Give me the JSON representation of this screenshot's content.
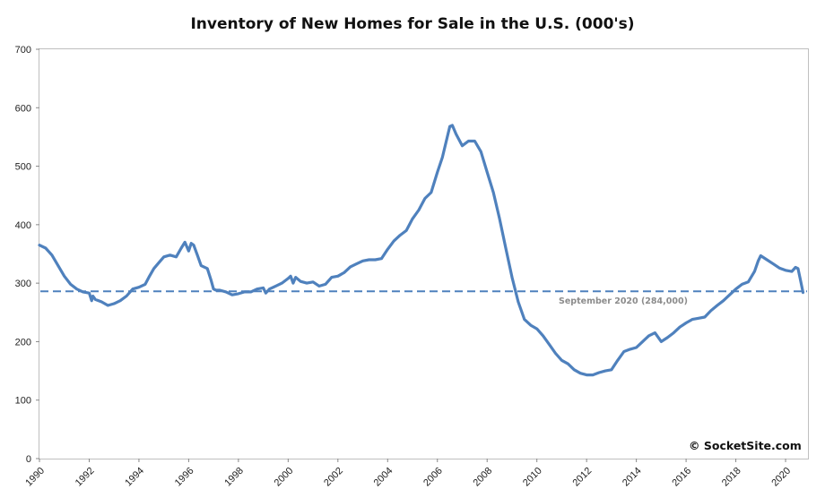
{
  "chart_data": {
    "type": "line",
    "title": "Inventory of New Homes for Sale in the U.S. (000's)",
    "xlabel": "",
    "ylabel": "",
    "xlim": [
      1990,
      2020.9
    ],
    "ylim": [
      0,
      700
    ],
    "x_ticks": [
      1990,
      1992,
      1994,
      1996,
      1998,
      2000,
      2002,
      2004,
      2006,
      2008,
      2010,
      2012,
      2014,
      2016,
      2018,
      2020
    ],
    "y_ticks": [
      0,
      100,
      200,
      300,
      400,
      500,
      600,
      700
    ],
    "grid": false,
    "legend": "none",
    "line_color": "#4f81bd",
    "series": [
      {
        "x": [
          1990.0,
          1990.25,
          1990.5,
          1990.75,
          1991.0,
          1991.25,
          1991.5,
          1991.75,
          1992.0,
          1992.1,
          1992.15,
          1992.25,
          1992.5,
          1992.75,
          1993.0,
          1993.25,
          1993.5,
          1993.75,
          1994.0,
          1994.25,
          1994.4,
          1994.6,
          1994.8,
          1995.0,
          1995.25,
          1995.5,
          1995.7,
          1995.85,
          1996.0,
          1996.1,
          1996.2,
          1996.35,
          1996.5,
          1996.75,
          1996.9,
          1997.0,
          1997.1,
          1997.25,
          1997.5,
          1997.75,
          1998.0,
          1998.25,
          1998.5,
          1998.75,
          1999.0,
          1999.1,
          1999.25,
          1999.5,
          1999.75,
          2000.0,
          2000.1,
          2000.2,
          2000.3,
          2000.5,
          2000.75,
          2001.0,
          2001.25,
          2001.5,
          2001.75,
          2002.0,
          2002.25,
          2002.5,
          2002.75,
          2003.0,
          2003.25,
          2003.5,
          2003.75,
          2004.0,
          2004.25,
          2004.5,
          2004.75,
          2005.0,
          2005.25,
          2005.5,
          2005.75,
          2006.0,
          2006.2,
          2006.4,
          2006.5,
          2006.6,
          2006.75,
          2007.0,
          2007.25,
          2007.5,
          2007.75,
          2008.0,
          2008.25,
          2008.5,
          2008.75,
          2009.0,
          2009.25,
          2009.5,
          2009.75,
          2010.0,
          2010.25,
          2010.5,
          2010.75,
          2011.0,
          2011.25,
          2011.5,
          2011.75,
          2012.0,
          2012.25,
          2012.5,
          2012.75,
          2013.0,
          2013.25,
          2013.5,
          2013.75,
          2014.0,
          2014.25,
          2014.5,
          2014.75,
          2015.0,
          2015.25,
          2015.5,
          2015.75,
          2016.0,
          2016.25,
          2016.5,
          2016.75,
          2017.0,
          2017.25,
          2017.5,
          2017.75,
          2018.0,
          2018.25,
          2018.5,
          2018.75,
          2018.9,
          2019.0,
          2019.25,
          2019.5,
          2019.75,
          2020.0,
          2020.25,
          2020.4,
          2020.5,
          2020.6,
          2020.7
        ],
        "values": [
          365,
          360,
          348,
          330,
          312,
          298,
          290,
          285,
          283,
          270,
          278,
          272,
          268,
          262,
          265,
          270,
          278,
          290,
          293,
          298,
          310,
          325,
          335,
          345,
          348,
          345,
          360,
          370,
          355,
          368,
          365,
          348,
          330,
          325,
          305,
          290,
          288,
          288,
          285,
          280,
          282,
          285,
          285,
          290,
          292,
          283,
          290,
          295,
          300,
          308,
          312,
          300,
          310,
          303,
          300,
          302,
          295,
          298,
          310,
          312,
          318,
          328,
          333,
          338,
          340,
          340,
          342,
          358,
          372,
          382,
          390,
          410,
          425,
          445,
          455,
          490,
          515,
          550,
          568,
          570,
          555,
          535,
          543,
          543,
          525,
          490,
          455,
          410,
          360,
          310,
          268,
          238,
          228,
          222,
          210,
          195,
          180,
          168,
          162,
          152,
          146,
          143,
          143,
          147,
          150,
          152,
          168,
          183,
          187,
          190,
          200,
          210,
          215,
          200,
          207,
          215,
          225,
          232,
          238,
          240,
          242,
          253,
          262,
          270,
          280,
          290,
          298,
          302,
          320,
          338,
          347,
          340,
          333,
          326,
          322,
          320,
          327,
          325,
          305,
          284
        ]
      }
    ],
    "reference_line": {
      "y": 286,
      "style": "dashed",
      "color": "#4f81bd"
    },
    "annotation": "September 2020 (284,000)",
    "credit": "© SocketSite.com"
  }
}
